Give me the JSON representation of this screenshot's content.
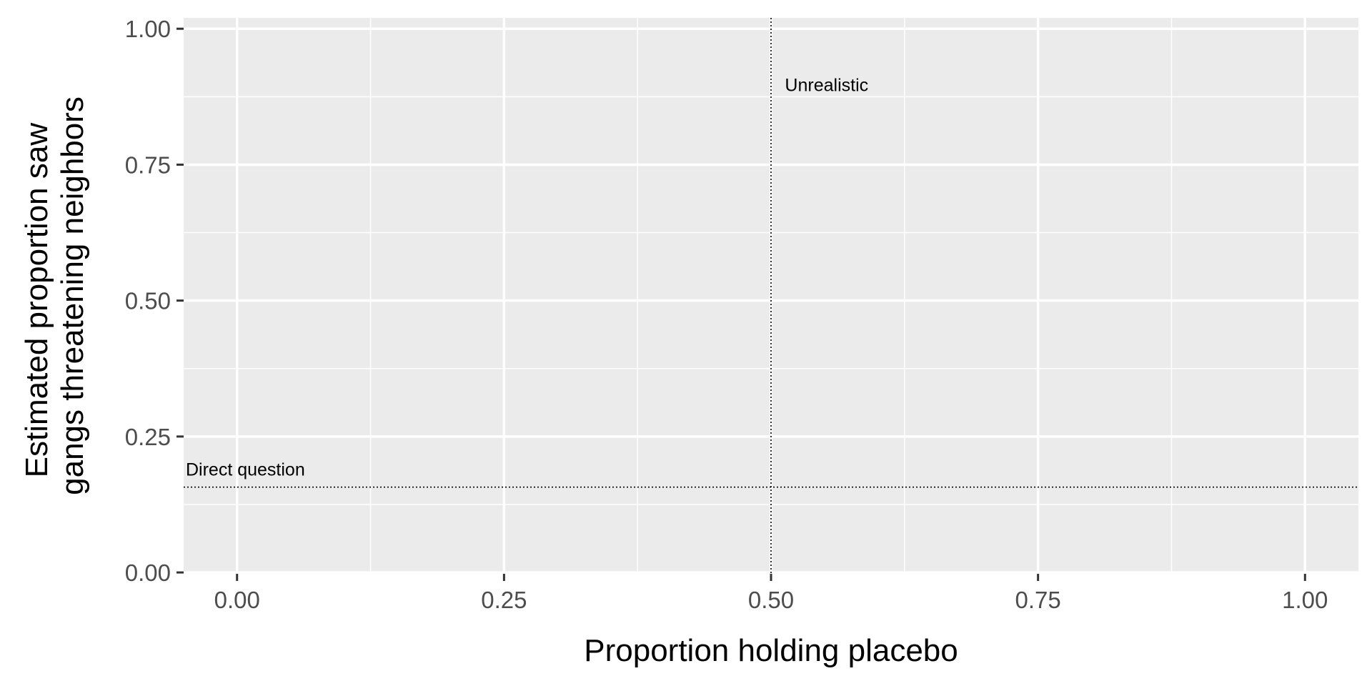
{
  "chart_data": {
    "type": "scatter",
    "xlabel": "Proportion holding placebo",
    "ylabel_lines": [
      "Estimated proportion saw",
      "gangs threatening neighbors"
    ],
    "xlim": [
      -0.05,
      1.05
    ],
    "ylim": [
      -0.0025,
      1.02
    ],
    "x_ticks": [
      {
        "value": 0,
        "label": "0.00"
      },
      {
        "value": 0.25,
        "label": "0.25"
      },
      {
        "value": 0.5,
        "label": "0.50"
      },
      {
        "value": 0.75,
        "label": "0.75"
      },
      {
        "value": 1,
        "label": "1.00"
      }
    ],
    "y_ticks": [
      {
        "value": 0,
        "label": "0.00"
      },
      {
        "value": 0.25,
        "label": "0.25"
      },
      {
        "value": 0.5,
        "label": "0.50"
      },
      {
        "value": 0.75,
        "label": "0.75"
      },
      {
        "value": 1,
        "label": "1.00"
      }
    ],
    "x_minor": [
      0.125,
      0.375,
      0.625,
      0.875
    ],
    "y_minor": [
      0.125,
      0.375,
      0.625,
      0.875
    ],
    "grid": true,
    "series": [],
    "reference_lines": [
      {
        "orientation": "horizontal",
        "value": 0.157,
        "style": "dotted"
      },
      {
        "orientation": "vertical",
        "value": 0.5,
        "style": "dotted"
      }
    ],
    "annotations": [
      {
        "text": "Direct question",
        "x": -0.048,
        "y": 0.178
      },
      {
        "text": "Unrealistic",
        "x": 0.513,
        "y": 0.885
      }
    ],
    "colors": {
      "panel": "#ebebeb",
      "grid": "#ffffff",
      "tick_text": "#4d4d4d",
      "tick_mark": "#333333"
    }
  }
}
